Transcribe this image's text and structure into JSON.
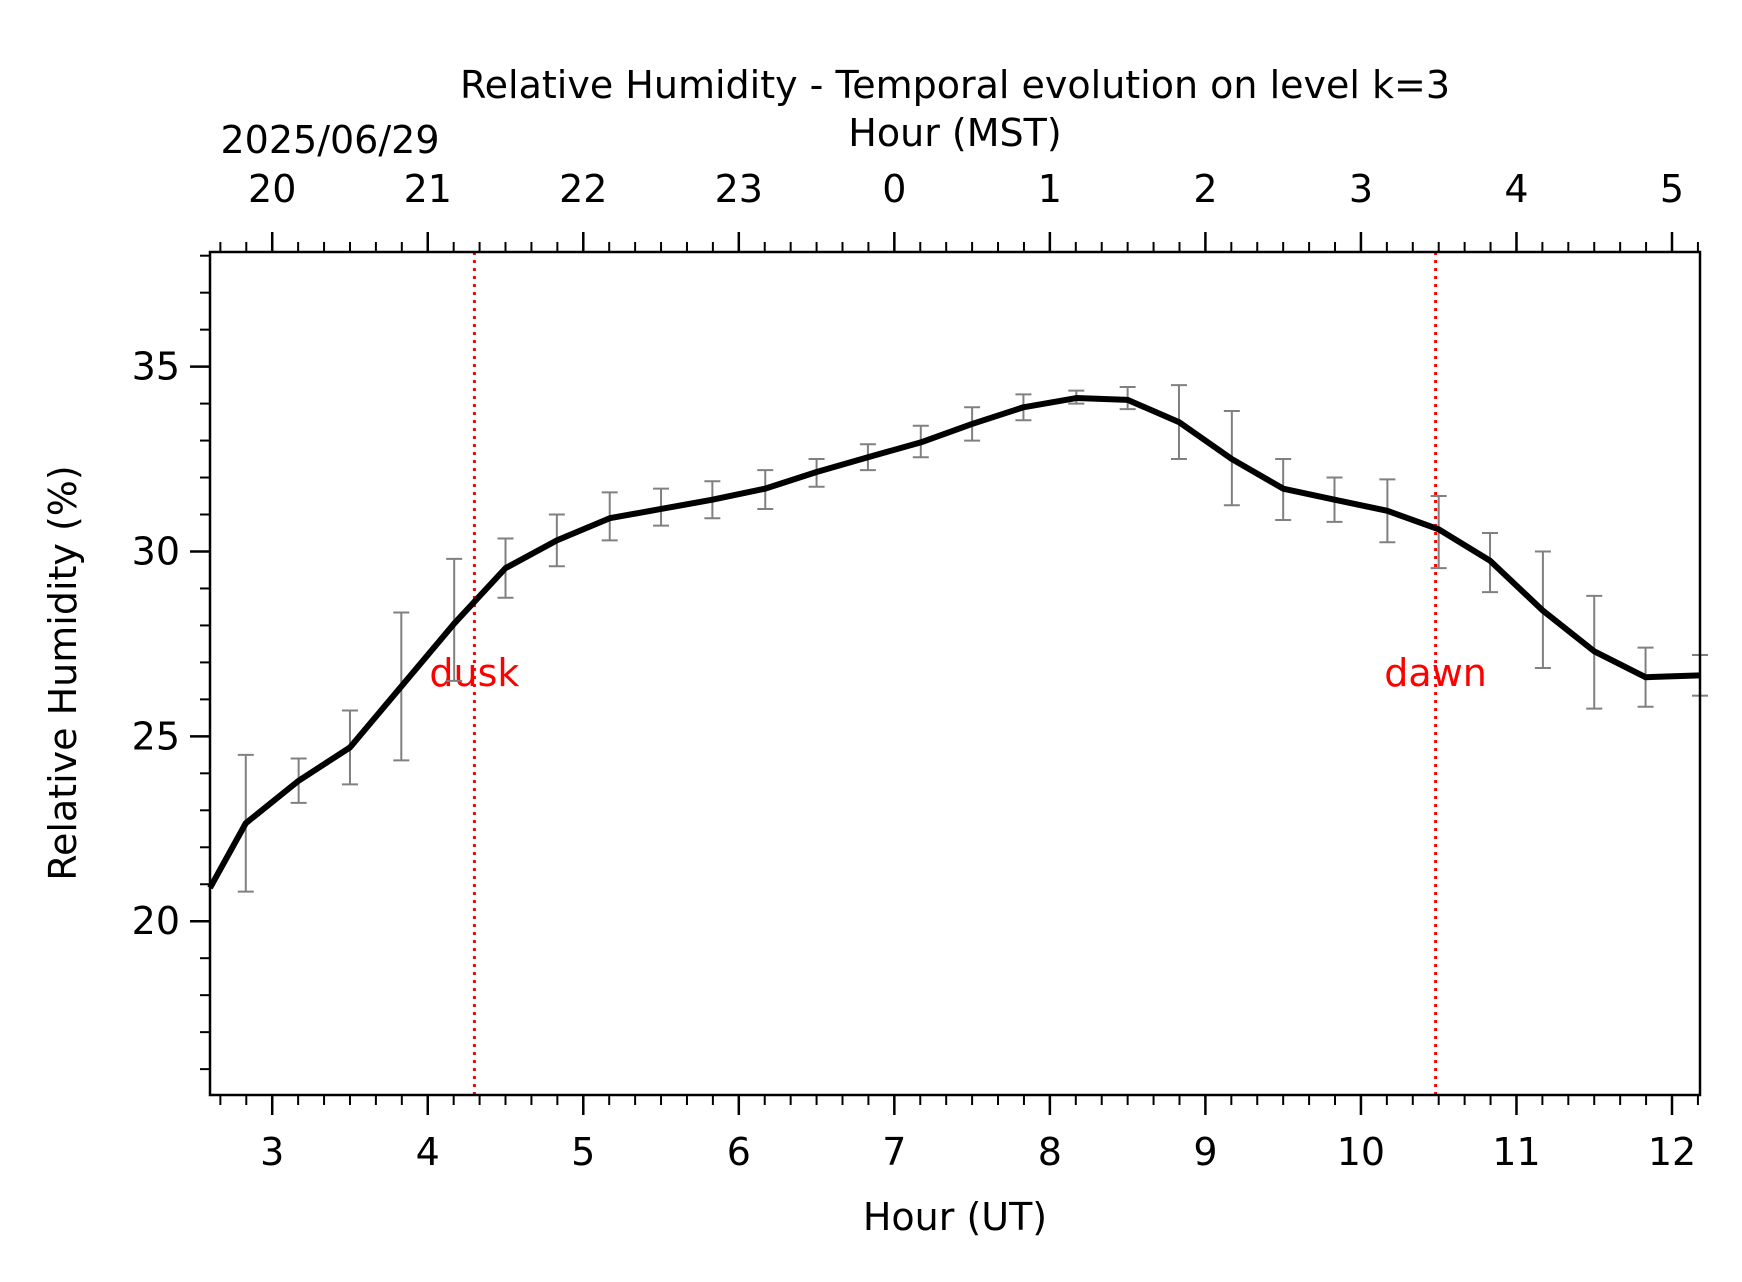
{
  "chart_data": {
    "type": "line",
    "title": "Relative Humidity - Temporal evolution on level k=3",
    "xlabel": "Hour (UT)",
    "ylabel": "Relative Humidity (%)",
    "top_xlabel": "Hour (MST)",
    "top_date": "2025/06/29",
    "xlim": [
      2.6,
      12.18
    ],
    "ylim": [
      15.3,
      38.1
    ],
    "x_ticks": [
      3,
      4,
      5,
      6,
      7,
      8,
      9,
      10,
      11,
      12
    ],
    "x_tick_labels": [
      "3",
      "4",
      "5",
      "6",
      "7",
      "8",
      "9",
      "10",
      "11",
      "12"
    ],
    "y_ticks": [
      20,
      25,
      30,
      35
    ],
    "y_tick_labels": [
      "20",
      "25",
      "30",
      "35"
    ],
    "top_ticks_ut": [
      3,
      4,
      5,
      6,
      7,
      8,
      9,
      10,
      11,
      12
    ],
    "top_tick_labels": [
      "20",
      "21",
      "22",
      "23",
      "0",
      "1",
      "2",
      "3",
      "4",
      "5"
    ],
    "series": [
      {
        "color": "#000000",
        "x": [
          2.6,
          2.83,
          3.17,
          3.5,
          3.83,
          4.17,
          4.5,
          4.83,
          5.17,
          5.5,
          5.83,
          6.17,
          6.5,
          6.83,
          7.17,
          7.5,
          7.83,
          8.17,
          8.5,
          8.83,
          9.17,
          9.5,
          9.83,
          10.17,
          10.5,
          10.83,
          11.17,
          11.5,
          11.83,
          12.18
        ],
        "y": [
          20.9,
          22.65,
          23.8,
          24.7,
          26.35,
          28.05,
          29.55,
          30.3,
          30.9,
          31.15,
          31.4,
          31.7,
          32.15,
          32.55,
          32.95,
          33.45,
          33.9,
          34.15,
          34.1,
          33.5,
          32.5,
          31.7,
          31.4,
          31.1,
          30.6,
          29.75,
          28.4,
          27.3,
          26.6,
          26.65
        ]
      }
    ],
    "error_bars": {
      "color": "#808080",
      "x": [
        2.83,
        3.17,
        3.5,
        3.83,
        4.17,
        4.5,
        4.83,
        5.17,
        5.5,
        5.83,
        6.17,
        6.5,
        6.83,
        7.17,
        7.5,
        7.83,
        8.17,
        8.5,
        8.83,
        9.17,
        9.5,
        9.83,
        10.17,
        10.5,
        10.83,
        11.17,
        11.5,
        11.83,
        12.18
      ],
      "low": [
        20.8,
        23.2,
        23.7,
        24.35,
        26.5,
        28.75,
        29.6,
        30.3,
        30.7,
        30.9,
        31.15,
        31.75,
        32.2,
        32.55,
        33.0,
        33.55,
        34.0,
        33.85,
        32.5,
        31.25,
        30.85,
        30.8,
        30.25,
        29.55,
        28.9,
        26.85,
        25.75,
        25.8,
        26.1
      ],
      "high": [
        24.5,
        24.4,
        25.7,
        28.35,
        29.8,
        30.35,
        31.0,
        31.6,
        31.7,
        31.9,
        32.2,
        32.5,
        32.9,
        33.4,
        33.9,
        34.25,
        34.35,
        34.45,
        34.5,
        33.8,
        32.5,
        32.0,
        31.95,
        31.5,
        30.5,
        30.0,
        28.8,
        27.4,
        27.2
      ]
    },
    "annotations": [
      {
        "label": "dusk",
        "x": 4.3,
        "color": "#ff0000"
      },
      {
        "label": "dawn",
        "x": 10.48,
        "color": "#ff0000"
      }
    ],
    "grid": false,
    "legend": "none"
  }
}
